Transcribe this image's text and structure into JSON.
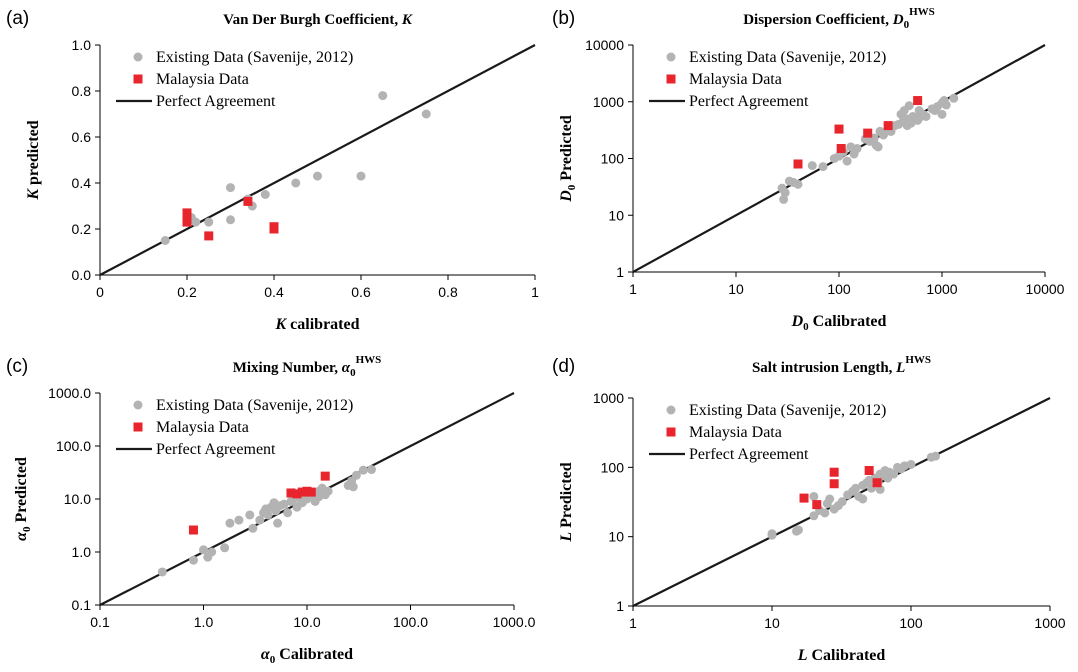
{
  "colors": {
    "existing": "#b3b3b3",
    "malaysia": "#e8252d",
    "line": "#1a1a1a"
  },
  "legend": {
    "existing": "Existing Data (Savenije, 2012)",
    "malaysia": "Malaysia Data",
    "line": "Perfect Agreement"
  },
  "chart_data": [
    {
      "id": "a",
      "panel": "(a)",
      "type": "scatter",
      "title": "Van Der Burgh Coefficient, ",
      "title_symbol": "K",
      "xlabel_symbol": "K",
      "xlabel": " calibrated",
      "ylabel_symbol": "K",
      "ylabel": " predicted",
      "scale": "linear",
      "xlim": [
        0,
        1
      ],
      "ylim": [
        0,
        1
      ],
      "xticks": [
        0,
        0.2,
        0.4,
        0.6,
        0.8,
        1
      ],
      "xtick_labels": [
        "0",
        "0.2",
        "0.4",
        "0.6",
        "0.8",
        "1"
      ],
      "yticks": [
        0,
        0.2,
        0.4,
        0.6,
        0.8,
        1
      ],
      "ytick_labels": [
        "0.0",
        "0.2",
        "0.4",
        "0.6",
        "0.8",
        "1.0"
      ],
      "legend_position": "top-left",
      "series": [
        {
          "name": "Existing Data (Savenije, 2012)",
          "marker": "circle",
          "points": [
            [
              0.15,
              0.15
            ],
            [
              0.2,
              0.26
            ],
            [
              0.21,
              0.25
            ],
            [
              0.22,
              0.23
            ],
            [
              0.25,
              0.23
            ],
            [
              0.3,
              0.38
            ],
            [
              0.3,
              0.24
            ],
            [
              0.34,
              0.33
            ],
            [
              0.35,
              0.3
            ],
            [
              0.38,
              0.35
            ],
            [
              0.45,
              0.4
            ],
            [
              0.5,
              0.43
            ],
            [
              0.6,
              0.43
            ],
            [
              0.65,
              0.78
            ],
            [
              0.75,
              0.7
            ]
          ]
        },
        {
          "name": "Malaysia Data",
          "marker": "square",
          "points": [
            [
              0.2,
              0.27
            ],
            [
              0.2,
              0.24
            ],
            [
              0.2,
              0.23
            ],
            [
              0.25,
              0.17
            ],
            [
              0.34,
              0.32
            ],
            [
              0.4,
              0.21
            ],
            [
              0.4,
              0.2
            ]
          ]
        }
      ]
    },
    {
      "id": "b",
      "panel": "(b)",
      "type": "scatter",
      "title": "Dispersion Coefficient, ",
      "title_symbol": "D",
      "title_sub": "0",
      "title_sup": "HWS",
      "xlabel_symbol": "D",
      "xlabel_sub": "0",
      "xlabel": " Calibrated",
      "ylabel_symbol": "D",
      "ylabel_sub": "0",
      "ylabel": " Predicted",
      "scale": "log",
      "xlim": [
        1,
        10000
      ],
      "ylim": [
        1,
        10000
      ],
      "xticks": [
        1,
        10,
        100,
        1000,
        10000
      ],
      "xtick_labels": [
        "1",
        "10",
        "100",
        "1000",
        "10000"
      ],
      "yticks": [
        1,
        10,
        100,
        1000,
        10000
      ],
      "ytick_labels": [
        "1",
        "10",
        "100",
        "1000",
        "10000"
      ],
      "legend_position": "top-left",
      "series": [
        {
          "name": "Existing Data (Savenije, 2012)",
          "marker": "circle",
          "points": [
            [
              28,
              30
            ],
            [
              29,
              19
            ],
            [
              30,
              25
            ],
            [
              33,
              40
            ],
            [
              36,
              38
            ],
            [
              40,
              35
            ],
            [
              55,
              75
            ],
            [
              70,
              72
            ],
            [
              90,
              100
            ],
            [
              100,
              110
            ],
            [
              110,
              130
            ],
            [
              120,
              90
            ],
            [
              130,
              160
            ],
            [
              140,
              120
            ],
            [
              150,
              150
            ],
            [
              180,
              220
            ],
            [
              200,
              200
            ],
            [
              220,
              230
            ],
            [
              230,
              170
            ],
            [
              240,
              160
            ],
            [
              250,
              300
            ],
            [
              270,
              260
            ],
            [
              300,
              310
            ],
            [
              320,
              300
            ],
            [
              350,
              380
            ],
            [
              380,
              400
            ],
            [
              400,
              600
            ],
            [
              420,
              450
            ],
            [
              450,
              500
            ],
            [
              460,
              380
            ],
            [
              480,
              850
            ],
            [
              500,
              420
            ],
            [
              520,
              550
            ],
            [
              550,
              480
            ],
            [
              580,
              470
            ],
            [
              600,
              520
            ],
            [
              650,
              600
            ],
            [
              700,
              550
            ],
            [
              800,
              750
            ],
            [
              850,
              700
            ],
            [
              900,
              820
            ],
            [
              1000,
              950
            ],
            [
              1050,
              1050
            ],
            [
              1100,
              880
            ],
            [
              1300,
              1150
            ],
            [
              1000,
              600
            ],
            [
              430,
              700
            ],
            [
              600,
              700
            ]
          ]
        },
        {
          "name": "Malaysia Data",
          "marker": "square",
          "points": [
            [
              40,
              80
            ],
            [
              100,
              330
            ],
            [
              105,
              150
            ],
            [
              190,
              280
            ],
            [
              300,
              380
            ],
            [
              580,
              1050
            ]
          ]
        }
      ]
    },
    {
      "id": "c",
      "panel": "(c)",
      "type": "scatter",
      "title": "Mixing Number, ",
      "title_symbol": "α",
      "title_sub": "0",
      "title_sup": "HWS",
      "xlabel_symbol": "α",
      "xlabel_sub": "0",
      "xlabel": " Calibrated",
      "ylabel_symbol": "α",
      "ylabel_sub": "0",
      "ylabel": " Predicted",
      "scale": "log",
      "xlim": [
        0.1,
        1000
      ],
      "ylim": [
        0.1,
        1000
      ],
      "xticks": [
        0.1,
        1,
        10,
        100,
        1000
      ],
      "xtick_labels": [
        "0.1",
        "1.0",
        "10.0",
        "100.0",
        "1000.0"
      ],
      "yticks": [
        0.1,
        1,
        10,
        100,
        1000
      ],
      "ytick_labels": [
        "0.1",
        "1.0",
        "10.0",
        "100.0",
        "1000.0"
      ],
      "legend_position": "top-left",
      "series": [
        {
          "name": "Existing Data (Savenije, 2012)",
          "marker": "circle",
          "points": [
            [
              0.4,
              0.42
            ],
            [
              0.8,
              0.7
            ],
            [
              1.0,
              1.1
            ],
            [
              1.1,
              0.8
            ],
            [
              1.2,
              1.0
            ],
            [
              1.6,
              1.2
            ],
            [
              1.8,
              3.5
            ],
            [
              2.2,
              4.0
            ],
            [
              2.8,
              5.0
            ],
            [
              3.0,
              2.8
            ],
            [
              3.5,
              4.0
            ],
            [
              3.8,
              5.5
            ],
            [
              4.0,
              6.5
            ],
            [
              4.2,
              5.0
            ],
            [
              4.5,
              7.0
            ],
            [
              4.8,
              8.5
            ],
            [
              5.0,
              6.0
            ],
            [
              5.2,
              3.5
            ],
            [
              5.5,
              7.5
            ],
            [
              6.0,
              8.0
            ],
            [
              6.5,
              5.5
            ],
            [
              7.0,
              9.0
            ],
            [
              7.5,
              10.0
            ],
            [
              8.0,
              7.0
            ],
            [
              8.5,
              11.0
            ],
            [
              9.0,
              8.5
            ],
            [
              10.0,
              10.0
            ],
            [
              11.0,
              12.0
            ],
            [
              12.0,
              9.0
            ],
            [
              13.0,
              11.0
            ],
            [
              14.0,
              16.0
            ],
            [
              15.0,
              12.0
            ],
            [
              16.0,
              14.0
            ],
            [
              25.0,
              18.0
            ],
            [
              27.0,
              22.0
            ],
            [
              28.0,
              17.0
            ],
            [
              30.0,
              28.0
            ],
            [
              35.0,
              35.0
            ],
            [
              42.0,
              36.0
            ],
            [
              13.0,
              14.0
            ],
            [
              9.5,
              13.0
            ]
          ]
        },
        {
          "name": "Malaysia Data",
          "marker": "square",
          "points": [
            [
              0.8,
              2.6
            ],
            [
              7.0,
              13.0
            ],
            [
              8.0,
              12.5
            ],
            [
              9.0,
              13.5
            ],
            [
              10.0,
              14.0
            ],
            [
              11.0,
              13.5
            ],
            [
              15.0,
              27.0
            ]
          ]
        }
      ]
    },
    {
      "id": "d",
      "panel": "(d)",
      "type": "scatter",
      "title": "Salt intrusion Length, ",
      "title_symbol": "L",
      "title_sup": "HWS",
      "xlabel_symbol": "L",
      "xlabel": " Calibrated",
      "ylabel_symbol": "L",
      "ylabel": " Predicted",
      "scale": "log",
      "xlim": [
        1,
        1000
      ],
      "ylim": [
        1,
        1000
      ],
      "xticks": [
        1,
        10,
        100,
        1000
      ],
      "xtick_labels": [
        "1",
        "10",
        "100",
        "1000"
      ],
      "yticks": [
        1,
        10,
        100,
        1000
      ],
      "ytick_labels": [
        "1",
        "10",
        "100",
        "1000"
      ],
      "legend_position": "top-left",
      "series": [
        {
          "name": "Existing Data (Savenije, 2012)",
          "marker": "circle",
          "points": [
            [
              10,
              11
            ],
            [
              10,
              10.5
            ],
            [
              15,
              12
            ],
            [
              15.5,
              12.5
            ],
            [
              20,
              20
            ],
            [
              22,
              24
            ],
            [
              24,
              22
            ],
            [
              25,
              30
            ],
            [
              26,
              35
            ],
            [
              28,
              25
            ],
            [
              30,
              28
            ],
            [
              32,
              32
            ],
            [
              35,
              40
            ],
            [
              38,
              45
            ],
            [
              40,
              50
            ],
            [
              42,
              38
            ],
            [
              45,
              55
            ],
            [
              48,
              60
            ],
            [
              50,
              65
            ],
            [
              52,
              50
            ],
            [
              55,
              70
            ],
            [
              58,
              60
            ],
            [
              60,
              80
            ],
            [
              62,
              75
            ],
            [
              65,
              90
            ],
            [
              68,
              70
            ],
            [
              70,
              85
            ],
            [
              75,
              80
            ],
            [
              80,
              100
            ],
            [
              85,
              95
            ],
            [
              90,
              105
            ],
            [
              100,
              110
            ],
            [
              140,
              140
            ],
            [
              150,
              145
            ],
            [
              45,
              35
            ],
            [
              60,
              48
            ],
            [
              20,
              38
            ]
          ]
        },
        {
          "name": "Malaysia Data",
          "marker": "square",
          "points": [
            [
              17,
              36
            ],
            [
              21,
              29
            ],
            [
              28,
              85
            ],
            [
              28,
              58
            ],
            [
              50,
              90
            ],
            [
              57,
              60
            ]
          ]
        }
      ]
    }
  ]
}
